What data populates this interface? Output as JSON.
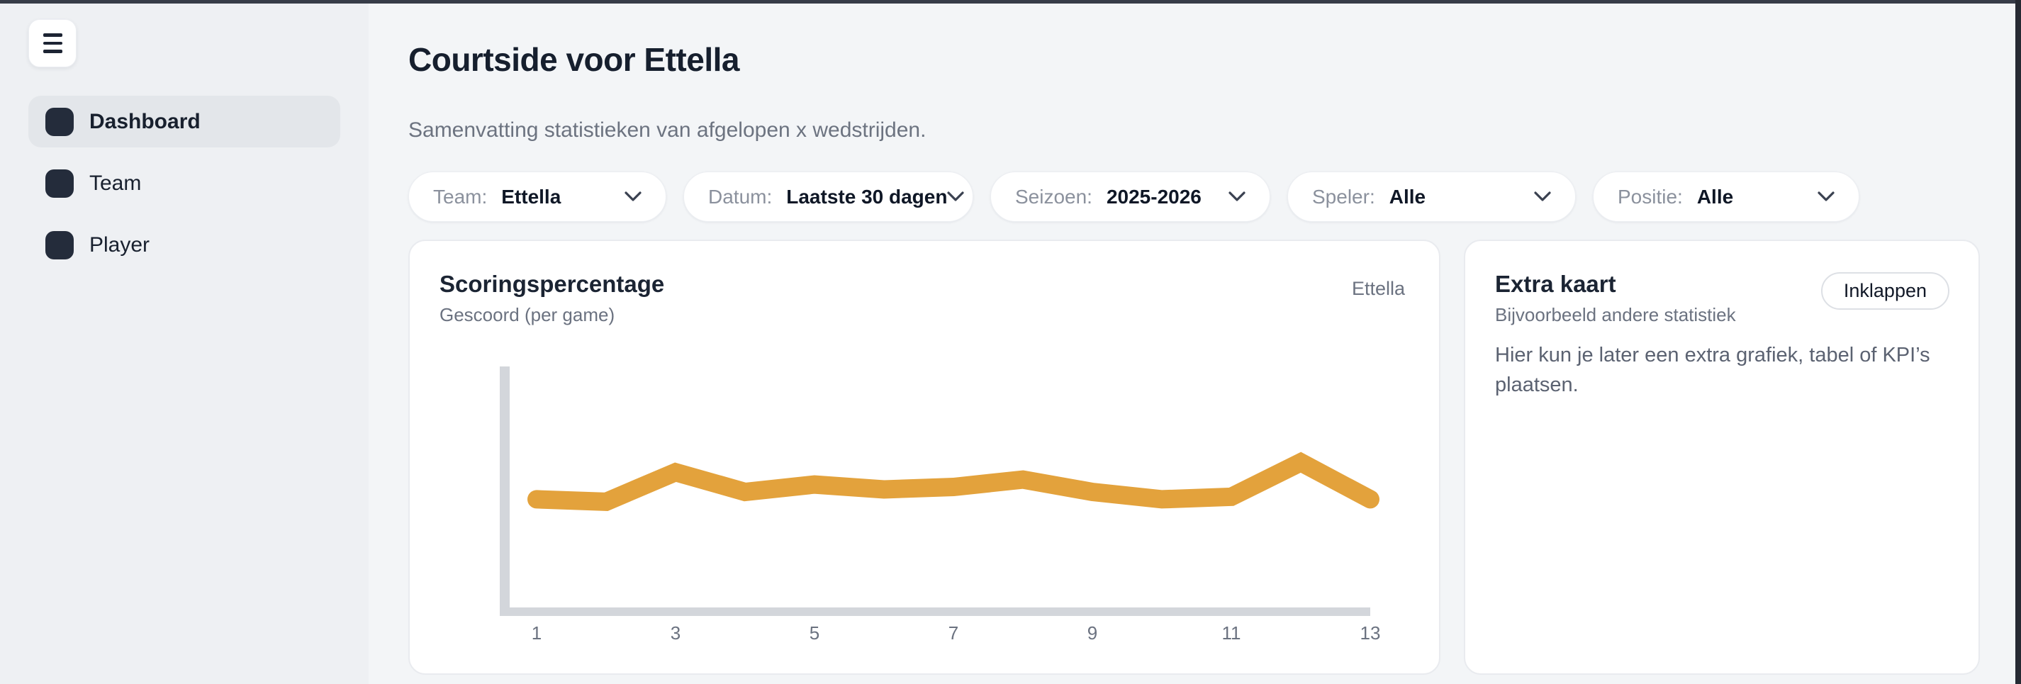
{
  "window": {
    "frame_top_color": "#373c48",
    "frame_right_color": "#262a33",
    "background_color": "#eef0f3"
  },
  "sidebar": {
    "menu_icon": "hamburger",
    "items": [
      {
        "label": "Dashboard",
        "active": true
      },
      {
        "label": "Team",
        "active": false
      },
      {
        "label": "Player",
        "active": false
      }
    ]
  },
  "header": {
    "title": "Courtside voor Ettella",
    "subtitle": "Samenvatting statistieken van afgelopen x wedstrijden."
  },
  "filters": [
    {
      "label": "Team:",
      "value": "Ettella"
    },
    {
      "label": "Datum:",
      "value": "Laatste 30 dagen"
    },
    {
      "label": "Seizoen:",
      "value": "2025-2026"
    },
    {
      "label": "Speler:",
      "value": "Alle"
    },
    {
      "label": "Positie:",
      "value": "Alle"
    }
  ],
  "chart_card": {
    "title": "Scoringspercentage",
    "subtitle": "Gescoord (per game)",
    "team_label": "Ettella"
  },
  "chart_data": {
    "type": "line",
    "title": "Scoringspercentage",
    "subtitle": "Gescoord (per game)",
    "x": [
      1,
      2,
      3,
      4,
      5,
      6,
      7,
      8,
      9,
      10,
      11,
      12,
      13
    ],
    "series": [
      {
        "name": "Ettella",
        "values": [
          46,
          45,
          57,
          49,
          52,
          50,
          51,
          54,
          49,
          46,
          47,
          61,
          46
        ]
      }
    ],
    "x_tick_labels": [
      1,
      3,
      5,
      7,
      9,
      11,
      13
    ],
    "xlabel": "",
    "ylabel": "",
    "ylim": [
      0,
      100
    ],
    "grid": false,
    "legend_position": "top-right",
    "line_color": "#E3A23C",
    "axis_color": "#D3D6DB"
  },
  "extra_card": {
    "title": "Extra kaart",
    "subtitle": "Bijvoorbeeld andere statistiek",
    "collapse_label": "Inklappen",
    "body": "Hier kun je later een extra grafiek, tabel of KPI’s plaatsen."
  }
}
